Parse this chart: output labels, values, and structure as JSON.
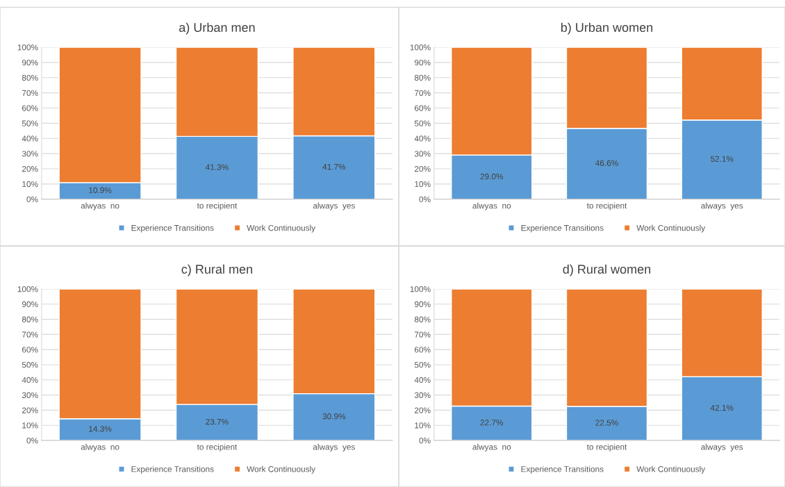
{
  "chart_data": [
    {
      "type": "bar",
      "title": "a) Urban men",
      "categories": [
        "alwyas  no",
        "to recipient",
        "always  yes"
      ],
      "stacked": true,
      "ylim": [
        0,
        100
      ],
      "yticks": [
        {
          "value": 0,
          "label": "0%"
        },
        {
          "value": 10,
          "label": "10%"
        },
        {
          "value": 20,
          "label": "20%"
        },
        {
          "value": 30,
          "label": "30%"
        },
        {
          "value": 40,
          "label": "40%"
        },
        {
          "value": 50,
          "label": "50%"
        },
        {
          "value": 60,
          "label": "60%"
        },
        {
          "value": 70,
          "label": "70%"
        },
        {
          "value": 80,
          "label": "80%"
        },
        {
          "value": 90,
          "label": "90%"
        },
        {
          "value": 100,
          "label": "100%"
        }
      ],
      "grid": "y",
      "legend": "bottom",
      "series": [
        {
          "name": "Experience Transitions",
          "color": "#5b9bd5",
          "values": [
            10.9,
            41.3,
            41.7
          ],
          "value_labels": [
            "10.9%",
            "41.3%",
            "41.7%"
          ]
        },
        {
          "name": "Work Continuously",
          "color": "#ed7d31",
          "values": [
            89.1,
            58.7,
            58.3
          ]
        }
      ]
    },
    {
      "type": "bar",
      "title": "b) Urban women",
      "categories": [
        "alwyas  no",
        "to recipient",
        "always  yes"
      ],
      "stacked": true,
      "ylim": [
        0,
        100
      ],
      "yticks": [
        {
          "value": 0,
          "label": "0%"
        },
        {
          "value": 10,
          "label": "10%"
        },
        {
          "value": 20,
          "label": "20%"
        },
        {
          "value": 30,
          "label": "30%"
        },
        {
          "value": 40,
          "label": "40%"
        },
        {
          "value": 50,
          "label": "50%"
        },
        {
          "value": 60,
          "label": "60%"
        },
        {
          "value": 70,
          "label": "70%"
        },
        {
          "value": 80,
          "label": "80%"
        },
        {
          "value": 90,
          "label": "90%"
        },
        {
          "value": 100,
          "label": "100%"
        }
      ],
      "grid": "y",
      "legend": "bottom",
      "series": [
        {
          "name": "Experience Transitions",
          "color": "#5b9bd5",
          "values": [
            29.0,
            46.6,
            52.1
          ],
          "value_labels": [
            "29.0%",
            "46.6%",
            "52.1%"
          ]
        },
        {
          "name": "Work Continuously",
          "color": "#ed7d31",
          "values": [
            71.0,
            53.4,
            47.9
          ]
        }
      ]
    },
    {
      "type": "bar",
      "title": "c) Rural men",
      "categories": [
        "alwyas  no",
        "to recipient",
        "always  yes"
      ],
      "stacked": true,
      "ylim": [
        0,
        100
      ],
      "yticks": [
        {
          "value": 0,
          "label": "0%"
        },
        {
          "value": 10,
          "label": "10%"
        },
        {
          "value": 20,
          "label": "20%"
        },
        {
          "value": 30,
          "label": "30%"
        },
        {
          "value": 40,
          "label": "40%"
        },
        {
          "value": 50,
          "label": "50%"
        },
        {
          "value": 60,
          "label": "60%"
        },
        {
          "value": 70,
          "label": "70%"
        },
        {
          "value": 80,
          "label": "80%"
        },
        {
          "value": 90,
          "label": "90%"
        },
        {
          "value": 100,
          "label": "100%"
        }
      ],
      "grid": "y",
      "legend": "bottom",
      "series": [
        {
          "name": "Experience Transitions",
          "color": "#5b9bd5",
          "values": [
            14.3,
            23.7,
            30.9
          ],
          "value_labels": [
            "14.3%",
            "23.7%",
            "30.9%"
          ]
        },
        {
          "name": "Work Continuously",
          "color": "#ed7d31",
          "values": [
            85.7,
            76.3,
            69.1
          ]
        }
      ]
    },
    {
      "type": "bar",
      "title": "d) Rural women",
      "categories": [
        "alwyas  no",
        "to recipient",
        "always  yes"
      ],
      "stacked": true,
      "ylim": [
        0,
        100
      ],
      "yticks": [
        {
          "value": 0,
          "label": "0%"
        },
        {
          "value": 10,
          "label": "10%"
        },
        {
          "value": 20,
          "label": "20%"
        },
        {
          "value": 30,
          "label": "30%"
        },
        {
          "value": 40,
          "label": "40%"
        },
        {
          "value": 50,
          "label": "50%"
        },
        {
          "value": 60,
          "label": "60%"
        },
        {
          "value": 70,
          "label": "70%"
        },
        {
          "value": 80,
          "label": "80%"
        },
        {
          "value": 90,
          "label": "90%"
        },
        {
          "value": 100,
          "label": "100%"
        }
      ],
      "grid": "y",
      "legend": "bottom",
      "series": [
        {
          "name": "Experience Transitions",
          "color": "#5b9bd5",
          "values": [
            22.7,
            22.5,
            42.1
          ],
          "value_labels": [
            "22.7%",
            "22.5%",
            "42.1%"
          ]
        },
        {
          "name": "Work Continuously",
          "color": "#ed7d31",
          "values": [
            77.3,
            77.5,
            57.9
          ]
        }
      ]
    }
  ]
}
